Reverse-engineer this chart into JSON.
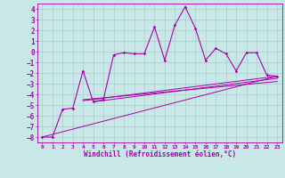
{
  "xlabel": "Windchill (Refroidissement éolien,°C)",
  "bg_color": "#c8e8e8",
  "line_color": "#aa00aa",
  "grid_color": "#aacccc",
  "xlim": [
    -0.5,
    23.5
  ],
  "ylim": [
    -8.5,
    4.5
  ],
  "xticks": [
    0,
    1,
    2,
    3,
    4,
    5,
    6,
    7,
    8,
    9,
    10,
    11,
    12,
    13,
    14,
    15,
    16,
    17,
    18,
    19,
    20,
    21,
    22,
    23
  ],
  "yticks": [
    -8,
    -7,
    -6,
    -5,
    -4,
    -3,
    -2,
    -1,
    0,
    1,
    2,
    3,
    4
  ],
  "series": [
    [
      0,
      -8
    ],
    [
      1,
      -8
    ],
    [
      2,
      -5.4
    ],
    [
      3,
      -5.3
    ],
    [
      4,
      -1.8
    ],
    [
      5,
      -4.7
    ],
    [
      6,
      -4.5
    ],
    [
      7,
      -0.3
    ],
    [
      8,
      -0.1
    ],
    [
      9,
      -0.2
    ],
    [
      10,
      -0.2
    ],
    [
      11,
      2.3
    ],
    [
      12,
      -0.8
    ],
    [
      13,
      2.5
    ],
    [
      14,
      4.2
    ],
    [
      15,
      2.2
    ],
    [
      16,
      -0.8
    ],
    [
      17,
      0.3
    ],
    [
      18,
      -0.2
    ],
    [
      19,
      -1.8
    ],
    [
      20,
      -0.1
    ],
    [
      21,
      -0.1
    ],
    [
      22,
      -2.2
    ],
    [
      23,
      -2.3
    ]
  ],
  "diag_lines": [
    [
      [
        0,
        -8
      ],
      [
        23,
        -2.3
      ]
    ],
    [
      [
        4,
        -4.6
      ],
      [
        23,
        -2.3
      ]
    ],
    [
      [
        5,
        -4.7
      ],
      [
        23,
        -2.5
      ]
    ],
    [
      [
        4,
        -4.5
      ],
      [
        23,
        -2.8
      ]
    ]
  ]
}
